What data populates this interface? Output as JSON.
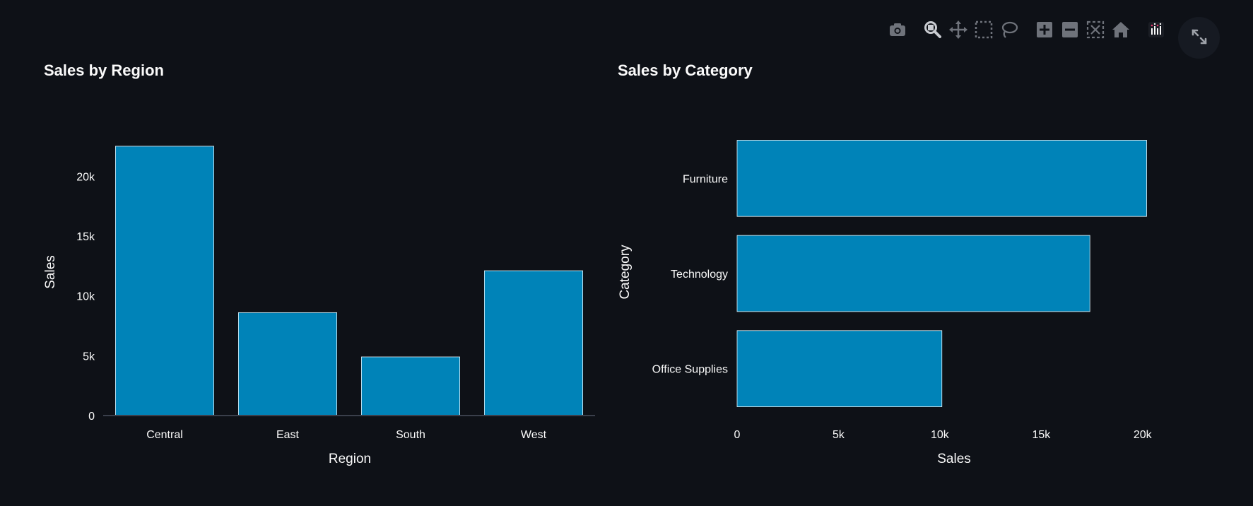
{
  "colors": {
    "background": "#0e1117",
    "bar_fill": "#0083b8",
    "bar_stroke": "#e6f4fa",
    "text": "#fafafa",
    "axis_line": "#3a3f4b",
    "toolbar_icon": "#6f737b",
    "toolbar_icon_active": "#c9ccd1"
  },
  "toolbar": {
    "icons": [
      "camera-icon",
      "zoom-icon",
      "pan-icon",
      "box-select-icon",
      "lasso-select-icon",
      "zoom-in-icon",
      "zoom-out-icon",
      "autoscale-icon",
      "reset-axes-icon",
      "plotly-logo-icon"
    ],
    "fullscreen_icon": "expand-icon"
  },
  "chart_data": [
    {
      "type": "bar",
      "orientation": "vertical",
      "title": "Sales by Region",
      "xlabel": "Region",
      "ylabel": "Sales",
      "categories": [
        "Central",
        "East",
        "South",
        "West"
      ],
      "values": [
        22500,
        8600,
        4900,
        12100
      ],
      "ylim": [
        0,
        23500
      ],
      "yticks": [
        0,
        5000,
        10000,
        15000,
        20000
      ],
      "ytick_labels": [
        "0",
        "5k",
        "10k",
        "15k",
        "20k"
      ],
      "grid": false
    },
    {
      "type": "bar",
      "orientation": "horizontal",
      "title": "Sales by Category",
      "xlabel": "Sales",
      "ylabel": "Category",
      "categories": [
        "Furniture",
        "Technology",
        "Office Supplies"
      ],
      "values": [
        20200,
        17400,
        10100
      ],
      "xlim": [
        0,
        20600
      ],
      "xticks": [
        0,
        5000,
        10000,
        15000,
        20000
      ],
      "xtick_labels": [
        "0",
        "5k",
        "10k",
        "15k",
        "20k"
      ],
      "grid": false
    }
  ]
}
